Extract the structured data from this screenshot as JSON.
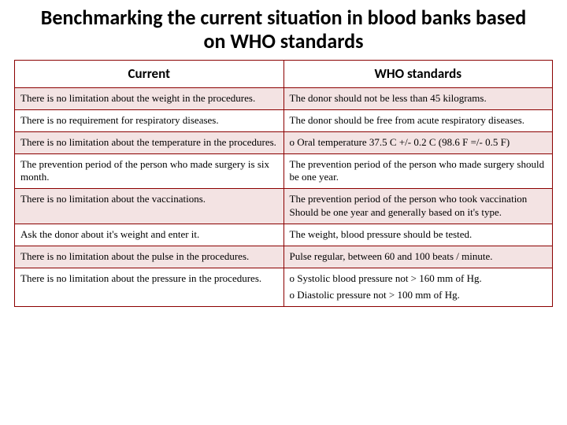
{
  "title": "Benchmarking the current situation in blood banks based on WHO standards",
  "columns": [
    "Current",
    "WHO standards"
  ],
  "rows": [
    {
      "current": "There is no limitation about the weight in the procedures.",
      "who": "The donor should not be less than 45 kilograms."
    },
    {
      "current": "There is no requirement for respiratory diseases.",
      "who": "The donor should be free from acute respiratory diseases."
    },
    {
      "current": "There is no limitation about the temperature in the procedures.",
      "who": "o Oral temperature 37.5 C +/- 0.2 C (98.6 F =/- 0.5 F)"
    },
    {
      "current": "The prevention period of the person who made surgery is six month.",
      "who": "The prevention period of the person who made surgery should be one year."
    },
    {
      "current": "There is no limitation about the vaccinations.",
      "who": "The prevention period of the person who took vaccination Should be one year and generally based on it's type."
    },
    {
      "current": "Ask the donor about it's weight and enter it.",
      "who": "The weight, blood pressure should be tested."
    },
    {
      "current": "There is no limitation about the pulse in the procedures.",
      "who": "Pulse regular, between 60 and 100 beats / minute."
    },
    {
      "current": "There is no limitation about the pressure in the procedures.",
      "who": "o Systolic blood pressure not > 160 mm of Hg.",
      "who2": "o Diastolic pressure not > 100 mm of Hg."
    }
  ],
  "styling": {
    "title_fontsize": 26,
    "header_fontsize": 17,
    "cell_fontsize": 13,
    "border_color": "#8b0000",
    "odd_row_bg": "#f3e3e3",
    "even_row_bg": "#ffffff",
    "background": "#ffffff"
  }
}
